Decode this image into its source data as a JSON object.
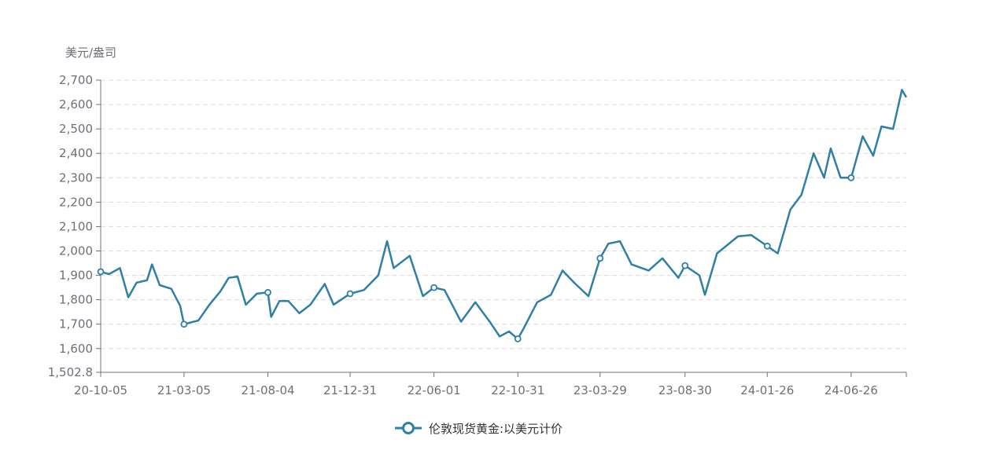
{
  "chart_data": {
    "type": "line",
    "title": "",
    "ylabel": "美元/盎司",
    "xlabel": "",
    "ylim": [
      1502.8,
      2700
    ],
    "y_ticks": [
      "2,700",
      "2,600",
      "2,500",
      "2,400",
      "2,300",
      "2,200",
      "2,100",
      "2,000",
      "1,900",
      "1,800",
      "1,700",
      "1,600",
      "1,502.8"
    ],
    "y_tick_values": [
      2700,
      2600,
      2500,
      2400,
      2300,
      2200,
      2100,
      2000,
      1900,
      1800,
      1700,
      1600,
      1502.8
    ],
    "x_ticks": [
      "20-10-05",
      "21-03-05",
      "21-08-04",
      "21-12-31",
      "22-06-01",
      "22-10-31",
      "23-03-29",
      "23-08-30",
      "24-01-26",
      "24-06-26"
    ],
    "x_range": [
      "20-10-05",
      "24-10-04"
    ],
    "grid": true,
    "legend_position": "bottom-center",
    "series": [
      {
        "name": "伦敦现货黄金:以美元计价",
        "color": "#2f7fa7",
        "points": [
          [
            "20-10-05",
            1915
          ],
          [
            "20-10-20",
            1905
          ],
          [
            "20-11-09",
            1930
          ],
          [
            "20-11-24",
            1810
          ],
          [
            "20-12-09",
            1870
          ],
          [
            "20-12-28",
            1880
          ],
          [
            "21-01-06",
            1945
          ],
          [
            "21-01-20",
            1860
          ],
          [
            "21-02-10",
            1845
          ],
          [
            "21-02-26",
            1775
          ],
          [
            "21-03-05",
            1700
          ],
          [
            "21-03-31",
            1715
          ],
          [
            "21-04-20",
            1780
          ],
          [
            "21-05-10",
            1835
          ],
          [
            "21-05-25",
            1890
          ],
          [
            "21-06-10",
            1895
          ],
          [
            "21-06-25",
            1780
          ],
          [
            "21-07-15",
            1825
          ],
          [
            "21-08-04",
            1830
          ],
          [
            "21-08-10",
            1730
          ],
          [
            "21-08-25",
            1795
          ],
          [
            "21-09-10",
            1795
          ],
          [
            "21-09-30",
            1745
          ],
          [
            "21-10-20",
            1780
          ],
          [
            "21-11-15",
            1865
          ],
          [
            "21-12-01",
            1780
          ],
          [
            "21-12-31",
            1825
          ],
          [
            "22-01-25",
            1840
          ],
          [
            "22-02-20",
            1900
          ],
          [
            "22-03-08",
            2040
          ],
          [
            "22-03-20",
            1930
          ],
          [
            "22-04-18",
            1980
          ],
          [
            "22-05-12",
            1815
          ],
          [
            "22-06-01",
            1850
          ],
          [
            "22-06-20",
            1840
          ],
          [
            "22-07-20",
            1710
          ],
          [
            "22-08-15",
            1790
          ],
          [
            "22-09-10",
            1710
          ],
          [
            "22-09-28",
            1650
          ],
          [
            "22-10-15",
            1670
          ],
          [
            "22-10-31",
            1640
          ],
          [
            "22-11-10",
            1680
          ],
          [
            "22-12-05",
            1790
          ],
          [
            "22-12-30",
            1820
          ],
          [
            "23-01-20",
            1920
          ],
          [
            "23-02-10",
            1870
          ],
          [
            "23-03-08",
            1815
          ],
          [
            "23-03-29",
            1970
          ],
          [
            "23-04-13",
            2030
          ],
          [
            "23-05-04",
            2040
          ],
          [
            "23-05-25",
            1945
          ],
          [
            "23-06-25",
            1920
          ],
          [
            "23-07-20",
            1970
          ],
          [
            "23-08-18",
            1890
          ],
          [
            "23-08-30",
            1940
          ],
          [
            "23-09-25",
            1900
          ],
          [
            "23-10-05",
            1820
          ],
          [
            "23-10-27",
            1990
          ],
          [
            "23-12-04",
            2060
          ],
          [
            "23-12-28",
            2065
          ],
          [
            "24-01-26",
            2020
          ],
          [
            "24-02-14",
            1990
          ],
          [
            "24-03-08",
            2170
          ],
          [
            "24-03-28",
            2230
          ],
          [
            "24-04-19",
            2400
          ],
          [
            "24-05-08",
            2300
          ],
          [
            "24-05-20",
            2420
          ],
          [
            "24-06-07",
            2300
          ],
          [
            "24-06-26",
            2300
          ],
          [
            "24-07-17",
            2470
          ],
          [
            "24-08-05",
            2390
          ],
          [
            "24-08-20",
            2510
          ],
          [
            "24-09-10",
            2500
          ],
          [
            "24-09-26",
            2660
          ],
          [
            "24-10-04",
            2630
          ]
        ]
      }
    ],
    "markers": [
      [
        "20-10-05",
        1915
      ],
      [
        "21-03-05",
        1700
      ],
      [
        "21-08-04",
        1830
      ],
      [
        "21-12-31",
        1825
      ],
      [
        "22-06-01",
        1850
      ],
      [
        "22-10-31",
        1640
      ],
      [
        "23-03-29",
        1970
      ],
      [
        "23-08-30",
        1940
      ],
      [
        "24-01-26",
        2020
      ],
      [
        "24-06-26",
        2300
      ]
    ]
  }
}
